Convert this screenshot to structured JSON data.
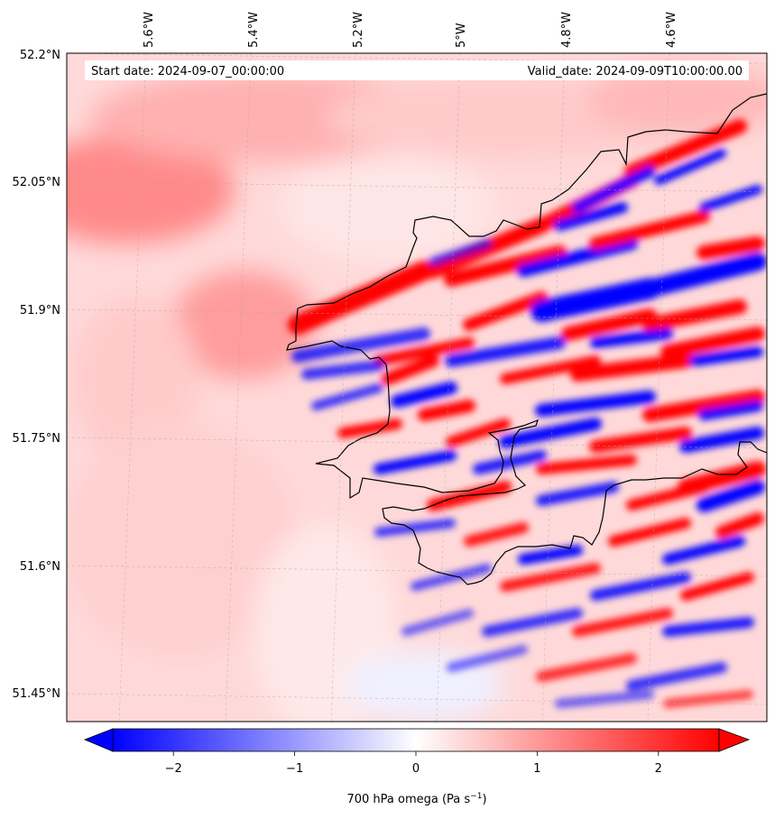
{
  "map": {
    "start_label": "Start date: 2024-09-07_00:00:00",
    "valid_label": "Valid_date: 2024-09-09T10:00:00.00",
    "lon_ticks": [
      "5.6°W",
      "5.4°W",
      "5.2°W",
      "5°W",
      "4.8°W",
      "4.6°W"
    ],
    "lat_ticks": [
      "52.2°N",
      "52.05°N",
      "51.9°N",
      "51.75°N",
      "51.6°N",
      "51.45°N"
    ],
    "field": "700 hPa omega",
    "colormap": "bwr",
    "colors": {
      "low": "#0000ff",
      "mid": "#ffffff",
      "high": "#ff0000",
      "coastline": "#000000"
    }
  },
  "colorbar": {
    "ticks": [
      "−2",
      "−1",
      "0",
      "1",
      "2"
    ],
    "tick_values": [
      -2,
      -1,
      0,
      1,
      2
    ],
    "range": [
      -2.5,
      2.5
    ],
    "extend": "both",
    "label_main": "700 hPa omega (Pa s",
    "label_exp": "−1",
    "label_end": ")"
  }
}
